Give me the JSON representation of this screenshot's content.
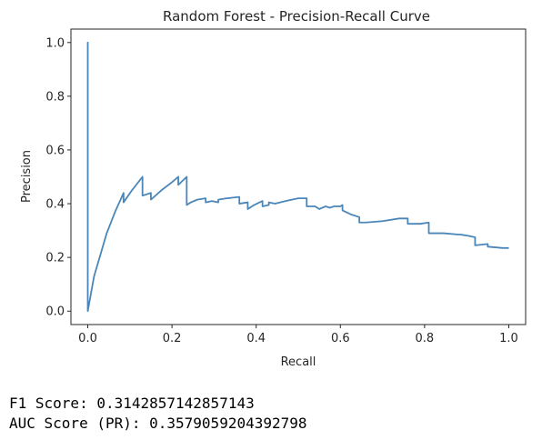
{
  "chart_data": {
    "type": "line",
    "title": "Random Forest - Precision-Recall Curve",
    "xlabel": "Recall",
    "ylabel": "Precision",
    "xlim": [
      -0.04,
      1.04
    ],
    "ylim": [
      -0.05,
      1.05
    ],
    "xticks": [
      "0.0",
      "0.2",
      "0.4",
      "0.6",
      "0.8",
      "1.0"
    ],
    "yticks": [
      "0.0",
      "0.2",
      "0.4",
      "0.6",
      "0.8",
      "1.0"
    ],
    "grid": false,
    "line_color": "#4a86b8",
    "series": [
      {
        "x": [
          0.0,
          0.0,
          0.0,
          0.015,
          0.045,
          0.065,
          0.085,
          0.085,
          0.105,
          0.13,
          0.13,
          0.15,
          0.15,
          0.175,
          0.2,
          0.215,
          0.215,
          0.235,
          0.235,
          0.245,
          0.26,
          0.28,
          0.28,
          0.295,
          0.31,
          0.31,
          0.33,
          0.36,
          0.36,
          0.38,
          0.38,
          0.395,
          0.415,
          0.415,
          0.43,
          0.43,
          0.445,
          0.47,
          0.5,
          0.52,
          0.52,
          0.54,
          0.55,
          0.565,
          0.575,
          0.585,
          0.6,
          0.605,
          0.605,
          0.625,
          0.645,
          0.645,
          0.66,
          0.7,
          0.74,
          0.76,
          0.76,
          0.79,
          0.81,
          0.81,
          0.845,
          0.88,
          0.885,
          0.905,
          0.92,
          0.92,
          0.95,
          0.95,
          0.985,
          1.0
        ],
        "y": [
          0.0,
          1.0,
          0.0,
          0.13,
          0.29,
          0.37,
          0.44,
          0.405,
          0.45,
          0.5,
          0.43,
          0.44,
          0.415,
          0.45,
          0.48,
          0.5,
          0.47,
          0.5,
          0.395,
          0.405,
          0.415,
          0.42,
          0.405,
          0.41,
          0.405,
          0.415,
          0.42,
          0.425,
          0.4,
          0.405,
          0.38,
          0.395,
          0.41,
          0.39,
          0.395,
          0.405,
          0.4,
          0.41,
          0.42,
          0.42,
          0.39,
          0.39,
          0.38,
          0.39,
          0.385,
          0.39,
          0.39,
          0.395,
          0.375,
          0.36,
          0.35,
          0.33,
          0.33,
          0.335,
          0.345,
          0.345,
          0.325,
          0.325,
          0.33,
          0.29,
          0.29,
          0.285,
          0.285,
          0.28,
          0.275,
          0.245,
          0.25,
          0.24,
          0.235,
          0.235
        ]
      }
    ]
  },
  "output": {
    "f1_line": "F1 Score: 0.3142857142857143",
    "auc_line": "AUC Score (PR): 0.3579059204392798"
  }
}
